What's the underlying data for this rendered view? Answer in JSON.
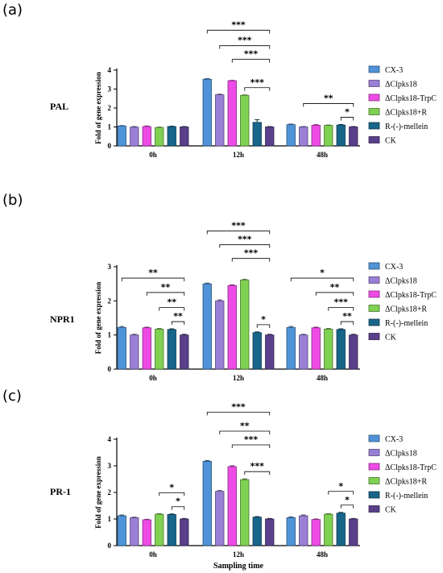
{
  "colors": {
    "CX-3": "#4f93d8",
    "ΔClpks18": "#9a7fd6",
    "ΔClpks18-TrpC": "#ee4be6",
    "ΔClpks18+R": "#7fd152",
    "R-(-)-mellein": "#17668a",
    "CK": "#5a3f8a"
  },
  "chart_data": [
    {
      "type": "bar",
      "panel_label": "(a)",
      "side_label": "PAL",
      "ylabel": "Fold of gene expression",
      "xlabel": "",
      "ylim": [
        0,
        4
      ],
      "yticks": [
        0,
        1,
        2,
        3,
        4
      ],
      "categories": [
        "0h",
        "12h",
        "48h"
      ],
      "series": [
        {
          "name": "CX-3",
          "values": [
            1.05,
            3.52,
            1.12
          ],
          "errors": [
            0.02,
            0.03,
            0.03
          ]
        },
        {
          "name": "ΔClpks18",
          "values": [
            0.99,
            2.7,
            1.0
          ],
          "errors": [
            0.03,
            0.03,
            0.02
          ]
        },
        {
          "name": "ΔClpks18-TrpC",
          "values": [
            1.02,
            3.44,
            1.09
          ],
          "errors": [
            0.03,
            0.02,
            0.03
          ]
        },
        {
          "name": "ΔClpks18+R",
          "values": [
            0.97,
            2.67,
            1.08
          ],
          "errors": [
            0.02,
            0.02,
            0.02
          ]
        },
        {
          "name": "R-(-)-mellein",
          "values": [
            1.02,
            1.24,
            1.1
          ],
          "errors": [
            0.02,
            0.14,
            0.03
          ]
        },
        {
          "name": "CK",
          "values": [
            1.0,
            1.0,
            1.0
          ],
          "errors": [
            0.02,
            0.02,
            0.02
          ]
        }
      ],
      "brackets": [
        {
          "category": "12h",
          "from": "CX-3",
          "to": "CK",
          "stars": "***",
          "level": 4
        },
        {
          "category": "12h",
          "from": "ΔClpks18",
          "to": "CK",
          "stars": "***",
          "level": 3
        },
        {
          "category": "12h",
          "from": "ΔClpks18-TrpC",
          "to": "CK",
          "stars": "***",
          "level": 2
        },
        {
          "category": "12h",
          "from": "ΔClpks18+R",
          "to": "CK",
          "stars": "***",
          "level": 1
        },
        {
          "category": "48h",
          "from": "ΔClpks18",
          "to": "CK",
          "stars": "**",
          "level": 2
        },
        {
          "category": "48h",
          "from": "R-(-)-mellein",
          "to": "CK",
          "stars": "*",
          "level": 1
        }
      ]
    },
    {
      "type": "bar",
      "panel_label": "(b)",
      "side_label": "NPR1",
      "ylabel": "Fold of gene expression",
      "xlabel": "",
      "ylim": [
        0,
        3
      ],
      "yticks": [
        0,
        1,
        2,
        3
      ],
      "categories": [
        "0h",
        "12h",
        "48h"
      ],
      "series": [
        {
          "name": "CX-3",
          "values": [
            1.22,
            2.5,
            1.22
          ],
          "errors": [
            0.03,
            0.02,
            0.03
          ]
        },
        {
          "name": "ΔClpks18",
          "values": [
            1.0,
            2.0,
            1.0
          ],
          "errors": [
            0.02,
            0.03,
            0.02
          ]
        },
        {
          "name": "ΔClpks18-TrpC",
          "values": [
            1.21,
            2.45,
            1.21
          ],
          "errors": [
            0.02,
            0.02,
            0.02
          ]
        },
        {
          "name": "ΔClpks18+R",
          "values": [
            1.17,
            2.61,
            1.17
          ],
          "errors": [
            0.02,
            0.02,
            0.02
          ]
        },
        {
          "name": "R-(-)-mellein",
          "values": [
            1.16,
            1.07,
            1.16
          ],
          "errors": [
            0.02,
            0.02,
            0.02
          ]
        },
        {
          "name": "CK",
          "values": [
            1.0,
            1.0,
            1.0
          ],
          "errors": [
            0.02,
            0.02,
            0.02
          ]
        }
      ],
      "brackets": [
        {
          "category": "0h",
          "from": "CX-3",
          "to": "CK",
          "stars": "**",
          "level": 4
        },
        {
          "category": "0h",
          "from": "ΔClpks18-TrpC",
          "to": "CK",
          "stars": "**",
          "level": 3
        },
        {
          "category": "0h",
          "from": "ΔClpks18+R",
          "to": "CK",
          "stars": "**",
          "level": 2
        },
        {
          "category": "0h",
          "from": "R-(-)-mellein",
          "to": "CK",
          "stars": "**",
          "level": 1
        },
        {
          "category": "12h",
          "from": "CX-3",
          "to": "CK",
          "stars": "***",
          "level": 4
        },
        {
          "category": "12h",
          "from": "ΔClpks18",
          "to": "CK",
          "stars": "***",
          "level": 3
        },
        {
          "category": "12h",
          "from": "ΔClpks18-TrpC",
          "to": "CK",
          "stars": "***",
          "level": 2
        },
        {
          "category": "12h",
          "from": "R-(-)-mellein",
          "to": "CK",
          "stars": "*",
          "level": 1
        },
        {
          "category": "48h",
          "from": "CX-3",
          "to": "CK",
          "stars": "*",
          "level": 4
        },
        {
          "category": "48h",
          "from": "ΔClpks18-TrpC",
          "to": "CK",
          "stars": "**",
          "level": 3
        },
        {
          "category": "48h",
          "from": "ΔClpks18+R",
          "to": "CK",
          "stars": "***",
          "level": 2
        },
        {
          "category": "48h",
          "from": "R-(-)-mellein",
          "to": "CK",
          "stars": "**",
          "level": 1
        }
      ]
    },
    {
      "type": "bar",
      "panel_label": "(c)",
      "side_label": "PR-1",
      "ylabel": "Fold of gene expression",
      "xlabel": "Sampling time",
      "ylim": [
        0,
        4
      ],
      "yticks": [
        0,
        1,
        2,
        3,
        4
      ],
      "categories": [
        "0h",
        "12h",
        "48h"
      ],
      "series": [
        {
          "name": "CX-3",
          "values": [
            1.12,
            3.17,
            1.05
          ],
          "errors": [
            0.03,
            0.03,
            0.03
          ]
        },
        {
          "name": "ΔClpks18",
          "values": [
            1.05,
            2.04,
            1.12
          ],
          "errors": [
            0.02,
            0.03,
            0.03
          ]
        },
        {
          "name": "ΔClpks18-TrpC",
          "values": [
            0.97,
            2.97,
            0.98
          ],
          "errors": [
            0.02,
            0.03,
            0.02
          ]
        },
        {
          "name": "ΔClpks18+R",
          "values": [
            1.18,
            2.48,
            1.18
          ],
          "errors": [
            0.02,
            0.03,
            0.02
          ]
        },
        {
          "name": "R-(-)-mellein",
          "values": [
            1.17,
            1.07,
            1.22
          ],
          "errors": [
            0.02,
            0.02,
            0.03
          ]
        },
        {
          "name": "CK",
          "values": [
            1.0,
            1.0,
            1.0
          ],
          "errors": [
            0.02,
            0.02,
            0.02
          ]
        }
      ],
      "brackets": [
        {
          "category": "0h",
          "from": "ΔClpks18+R",
          "to": "CK",
          "stars": "*",
          "level": 2
        },
        {
          "category": "0h",
          "from": "R-(-)-mellein",
          "to": "CK",
          "stars": "*",
          "level": 1
        },
        {
          "category": "12h",
          "from": "CX-3",
          "to": "CK",
          "stars": "***",
          "level": 4
        },
        {
          "category": "12h",
          "from": "ΔClpks18",
          "to": "CK",
          "stars": "**",
          "level": 3
        },
        {
          "category": "12h",
          "from": "ΔClpks18-TrpC",
          "to": "CK",
          "stars": "***",
          "level": 2
        },
        {
          "category": "12h",
          "from": "ΔClpks18+R",
          "to": "CK",
          "stars": "***",
          "level": 1
        },
        {
          "category": "48h",
          "from": "ΔClpks18+R",
          "to": "CK",
          "stars": "*",
          "level": 2
        },
        {
          "category": "48h",
          "from": "R-(-)-mellein",
          "to": "CK",
          "stars": "*",
          "level": 1
        }
      ]
    }
  ]
}
